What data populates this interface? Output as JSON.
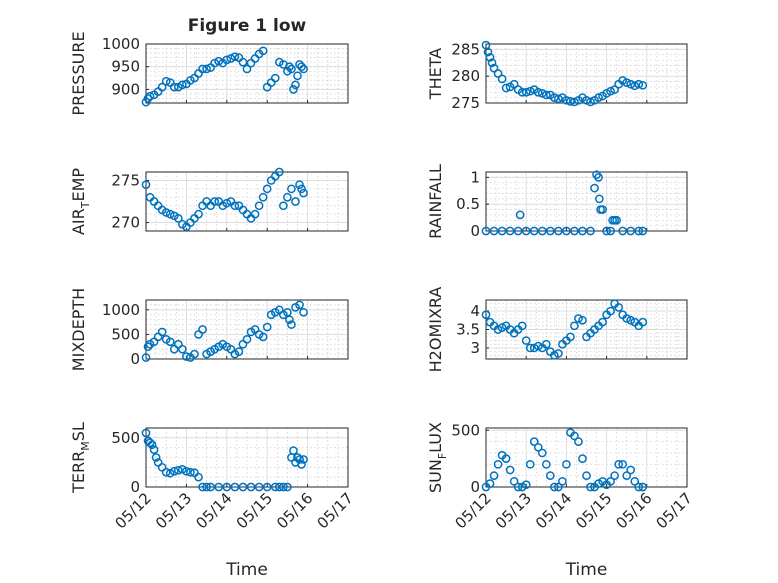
{
  "figure": {
    "title": "Figure 1 low",
    "xlabel": "Time"
  },
  "chart_data": [
    {
      "type": "scatter",
      "panel": "top-left",
      "ylabel": "PRESSURE",
      "ylim": [
        870,
        1000
      ],
      "yticks": [
        900,
        950,
        1000
      ],
      "title": "Figure 1 low",
      "x": [
        0.0,
        0.05,
        0.1,
        0.2,
        0.3,
        0.4,
        0.5,
        0.6,
        0.7,
        0.8,
        0.9,
        1.0,
        1.1,
        1.2,
        1.3,
        1.4,
        1.5,
        1.6,
        1.7,
        1.8,
        1.9,
        2.0,
        2.1,
        2.2,
        2.3,
        2.4,
        2.5,
        2.6,
        2.7,
        2.8,
        2.9,
        3.0,
        3.1,
        3.2,
        3.3,
        3.4,
        3.5,
        3.55,
        3.6,
        3.65,
        3.7,
        3.75,
        3.8,
        3.85,
        3.9
      ],
      "y": [
        872,
        880,
        885,
        888,
        895,
        905,
        918,
        915,
        905,
        905,
        910,
        912,
        920,
        925,
        935,
        945,
        945,
        948,
        958,
        962,
        958,
        965,
        968,
        972,
        970,
        960,
        945,
        958,
        968,
        978,
        985,
        905,
        915,
        925,
        960,
        955,
        940,
        950,
        945,
        900,
        910,
        930,
        955,
        950,
        945
      ]
    },
    {
      "type": "scatter",
      "panel": "top-right",
      "ylabel": "THETA",
      "ylim": [
        275,
        286
      ],
      "yticks": [
        275,
        280,
        285
      ],
      "x": [
        0.0,
        0.05,
        0.1,
        0.15,
        0.2,
        0.3,
        0.4,
        0.5,
        0.6,
        0.7,
        0.8,
        0.9,
        1.0,
        1.1,
        1.2,
        1.3,
        1.4,
        1.5,
        1.6,
        1.7,
        1.8,
        1.9,
        2.0,
        2.1,
        2.2,
        2.3,
        2.4,
        2.5,
        2.6,
        2.7,
        2.8,
        2.9,
        3.0,
        3.1,
        3.2,
        3.3,
        3.4,
        3.5,
        3.6,
        3.7,
        3.8,
        3.9
      ],
      "y": [
        285.8,
        284.5,
        283.5,
        282.5,
        281.5,
        280.5,
        279.5,
        277.8,
        278.0,
        278.5,
        277.5,
        277.0,
        277.0,
        277.2,
        277.5,
        277.0,
        276.8,
        276.5,
        276.5,
        276.0,
        275.8,
        276.0,
        275.5,
        275.3,
        275.2,
        275.5,
        276.0,
        275.5,
        275.2,
        275.5,
        276.0,
        276.3,
        276.8,
        277.2,
        277.5,
        278.5,
        279.2,
        278.8,
        278.5,
        278.2,
        278.5,
        278.3
      ]
    },
    {
      "type": "scatter",
      "panel": "middle-left-1",
      "ylabel": "AIR_TEMP",
      "ylim": [
        269,
        276
      ],
      "yticks": [
        270,
        275
      ],
      "x": [
        0.0,
        0.1,
        0.2,
        0.3,
        0.4,
        0.5,
        0.6,
        0.7,
        0.8,
        0.9,
        1.0,
        1.1,
        1.2,
        1.3,
        1.4,
        1.5,
        1.6,
        1.7,
        1.8,
        1.9,
        2.0,
        2.1,
        2.2,
        2.3,
        2.4,
        2.5,
        2.6,
        2.7,
        2.8,
        2.9,
        3.0,
        3.1,
        3.2,
        3.3,
        3.4,
        3.5,
        3.6,
        3.7,
        3.8,
        3.85,
        3.9
      ],
      "y": [
        274.5,
        273.0,
        272.5,
        272.0,
        271.5,
        271.2,
        271.0,
        270.8,
        270.5,
        269.8,
        269.5,
        270.0,
        270.5,
        271.0,
        272.0,
        272.5,
        272.0,
        272.5,
        272.5,
        272.0,
        272.3,
        272.5,
        272.0,
        272.0,
        271.5,
        271.0,
        270.5,
        271.0,
        272.0,
        273.0,
        274.0,
        275.0,
        275.5,
        276.0,
        272.0,
        273.0,
        274.0,
        272.5,
        274.5,
        274.0,
        273.5
      ]
    },
    {
      "type": "scatter",
      "panel": "middle-right-1",
      "ylabel": "RAINFALL",
      "ylim": [
        0,
        1.1
      ],
      "yticks": [
        0,
        0.5,
        1
      ],
      "x": [
        0.0,
        0.2,
        0.4,
        0.6,
        0.8,
        0.85,
        1.0,
        1.2,
        1.4,
        1.6,
        1.8,
        2.0,
        2.2,
        2.4,
        2.6,
        2.7,
        2.75,
        2.8,
        2.82,
        2.85,
        2.9,
        3.0,
        3.1,
        3.15,
        3.2,
        3.25,
        3.4,
        3.6,
        3.8,
        3.9
      ],
      "y": [
        0,
        0,
        0,
        0,
        0,
        0.3,
        0,
        0,
        0,
        0,
        0,
        0,
        0,
        0,
        0,
        0.8,
        1.05,
        1.0,
        0.6,
        0.4,
        0.4,
        0,
        0,
        0.2,
        0.2,
        0.2,
        0,
        0,
        0,
        0
      ]
    },
    {
      "type": "scatter",
      "panel": "middle-left-2",
      "ylabel": "MIXDEPTH",
      "ylim": [
        0,
        1200
      ],
      "yticks": [
        0,
        500,
        1000
      ],
      "x": [
        0.0,
        0.05,
        0.1,
        0.2,
        0.3,
        0.4,
        0.5,
        0.6,
        0.7,
        0.8,
        0.9,
        1.0,
        1.1,
        1.2,
        1.3,
        1.4,
        1.5,
        1.6,
        1.7,
        1.8,
        1.9,
        2.0,
        2.1,
        2.2,
        2.3,
        2.4,
        2.5,
        2.6,
        2.7,
        2.8,
        2.9,
        3.0,
        3.1,
        3.2,
        3.3,
        3.4,
        3.5,
        3.55,
        3.6,
        3.7,
        3.8,
        3.9
      ],
      "y": [
        30,
        250,
        300,
        350,
        450,
        550,
        400,
        350,
        200,
        300,
        200,
        50,
        30,
        100,
        500,
        600,
        100,
        150,
        200,
        250,
        300,
        250,
        200,
        100,
        150,
        300,
        400,
        550,
        600,
        500,
        450,
        650,
        900,
        950,
        1000,
        900,
        950,
        800,
        700,
        1050,
        1100,
        950
      ]
    },
    {
      "type": "scatter",
      "panel": "middle-right-2",
      "ylabel": "H2OMIXRA",
      "ylim": [
        2.7,
        4.3
      ],
      "yticks": [
        3,
        3.5,
        4
      ],
      "x": [
        0.0,
        0.1,
        0.2,
        0.3,
        0.4,
        0.5,
        0.6,
        0.7,
        0.8,
        0.9,
        1.0,
        1.1,
        1.2,
        1.3,
        1.4,
        1.5,
        1.6,
        1.7,
        1.8,
        1.9,
        2.0,
        2.1,
        2.2,
        2.3,
        2.4,
        2.5,
        2.6,
        2.7,
        2.8,
        2.9,
        3.0,
        3.1,
        3.2,
        3.3,
        3.4,
        3.5,
        3.6,
        3.7,
        3.8,
        3.9
      ],
      "y": [
        3.9,
        3.7,
        3.6,
        3.5,
        3.55,
        3.6,
        3.5,
        3.4,
        3.5,
        3.6,
        3.2,
        3.0,
        3.0,
        3.05,
        3.0,
        3.1,
        2.9,
        2.8,
        2.85,
        3.1,
        3.2,
        3.3,
        3.6,
        3.8,
        3.75,
        3.3,
        3.4,
        3.5,
        3.6,
        3.7,
        3.9,
        4.0,
        4.2,
        4.1,
        3.9,
        3.8,
        3.75,
        3.7,
        3.6,
        3.7
      ]
    },
    {
      "type": "scatter",
      "panel": "bottom-left",
      "ylabel": "TERR_MSL",
      "ylim": [
        0,
        600
      ],
      "yticks": [
        0,
        500
      ],
      "x": [
        0.0,
        0.05,
        0.1,
        0.15,
        0.2,
        0.25,
        0.3,
        0.4,
        0.5,
        0.6,
        0.7,
        0.8,
        0.9,
        1.0,
        1.1,
        1.2,
        1.3,
        1.4,
        1.5,
        1.6,
        1.8,
        2.0,
        2.2,
        2.4,
        2.6,
        2.8,
        3.0,
        3.2,
        3.3,
        3.4,
        3.5,
        3.6,
        3.65,
        3.7,
        3.75,
        3.8,
        3.85,
        3.9
      ],
      "y": [
        550,
        470,
        450,
        430,
        380,
        300,
        250,
        200,
        150,
        140,
        160,
        170,
        180,
        160,
        150,
        145,
        100,
        0,
        0,
        0,
        0,
        0,
        0,
        0,
        0,
        0,
        0,
        0,
        0,
        0,
        0,
        300,
        370,
        250,
        300,
        280,
        230,
        280
      ]
    },
    {
      "type": "scatter",
      "panel": "bottom-right",
      "ylabel": "SUN_FLUX",
      "ylim": [
        0,
        520
      ],
      "yticks": [
        0,
        500
      ],
      "x": [
        0.0,
        0.1,
        0.2,
        0.3,
        0.4,
        0.5,
        0.6,
        0.7,
        0.8,
        0.9,
        1.0,
        1.1,
        1.2,
        1.3,
        1.4,
        1.5,
        1.6,
        1.7,
        1.8,
        1.9,
        2.0,
        2.1,
        2.2,
        2.3,
        2.4,
        2.5,
        2.6,
        2.7,
        2.8,
        2.9,
        3.0,
        3.1,
        3.2,
        3.3,
        3.4,
        3.5,
        3.6,
        3.7,
        3.8,
        3.9
      ],
      "y": [
        0,
        30,
        100,
        200,
        280,
        250,
        150,
        50,
        0,
        0,
        20,
        200,
        400,
        350,
        300,
        200,
        100,
        0,
        0,
        50,
        200,
        480,
        450,
        400,
        250,
        100,
        0,
        0,
        30,
        50,
        20,
        50,
        100,
        200,
        200,
        100,
        150,
        50,
        0,
        0
      ]
    }
  ],
  "xaxis": {
    "xlim": [
      0,
      5
    ],
    "ticks": [
      0,
      1,
      2,
      3,
      4,
      5
    ],
    "ticklabels": [
      "05/12",
      "05/13",
      "05/14",
      "05/15",
      "05/16",
      "05/17"
    ]
  },
  "ylabels_display": {
    "AIR_TEMP": {
      "main": "AIR",
      "sub": "T",
      "rest": "EMP"
    },
    "TERR_MSL": {
      "main": "TERR",
      "sub": "M",
      "rest": "SL"
    },
    "SUN_FLUX": {
      "main": "SUN",
      "sub": "F",
      "rest": "LUX"
    }
  }
}
